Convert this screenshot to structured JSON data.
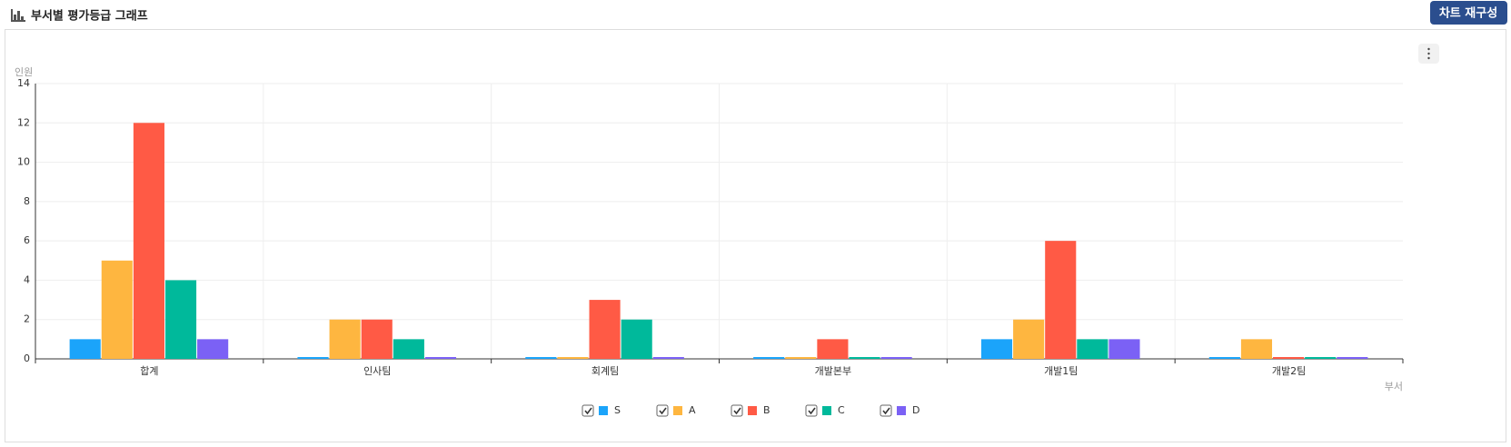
{
  "header": {
    "title": "부서별 평가등급 그래프",
    "button": "차트 재구성"
  },
  "chart_data": {
    "type": "bar",
    "x_label": "부서",
    "y_label": "인원",
    "categories": [
      "합계",
      "인사팀",
      "회계팀",
      "개발본부",
      "개발1팀",
      "개발2팀"
    ],
    "series": [
      {
        "name": "S",
        "color": "#1ba4fa",
        "values": [
          1,
          0,
          0,
          0,
          1,
          0
        ]
      },
      {
        "name": "A",
        "color": "#feb640",
        "values": [
          5,
          2,
          0,
          0,
          2,
          1
        ]
      },
      {
        "name": "B",
        "color": "#ff5a45",
        "values": [
          12,
          2,
          3,
          1,
          6,
          0
        ]
      },
      {
        "name": "C",
        "color": "#00b99b",
        "values": [
          4,
          1,
          2,
          0,
          1,
          0
        ]
      },
      {
        "name": "D",
        "color": "#7b61f5",
        "values": [
          1,
          0,
          0,
          0,
          1,
          0
        ]
      }
    ],
    "ylim": [
      0,
      14
    ],
    "yticks": [
      0,
      2,
      4,
      6,
      8,
      10,
      12,
      14
    ],
    "grid": true,
    "legend": "bottom"
  }
}
